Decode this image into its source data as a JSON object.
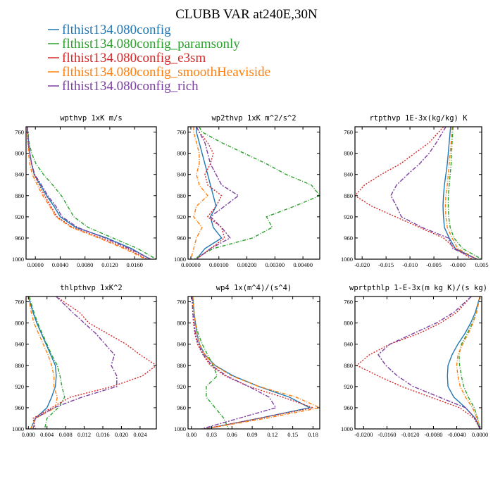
{
  "figure": {
    "title": "CLUBB VAR at240E,30N"
  },
  "legend": [
    {
      "name": "flthist134.080config",
      "color": "#1f77b4"
    },
    {
      "name": "flthist134.080config_paramsonly",
      "color": "#2ca02c"
    },
    {
      "name": "flthist134.080config_e3sm",
      "color": "#d62728"
    },
    {
      "name": "flthist134.080config_smoothHeaviside",
      "color": "#ff7f0e"
    },
    {
      "name": "flthist134.080config_rich",
      "color": "#7b3fa0"
    }
  ],
  "chart_data": [
    {
      "type": "line",
      "title": "wpthvp  1xK m/s",
      "xlim": [
        -0.0015,
        0.0195
      ],
      "ylim": [
        1000,
        750
      ],
      "xticks": [
        0,
        0.004,
        0.008,
        0.012,
        0.016
      ],
      "xticklabels": [
        "0.0000",
        "0.0040",
        "0.0080",
        "0.0120",
        "0.0160"
      ],
      "yticks": [
        760,
        800,
        840,
        880,
        920,
        960,
        1000
      ],
      "y": [
        750,
        780,
        800,
        820,
        840,
        860,
        880,
        900,
        920,
        940,
        960,
        980,
        1000
      ],
      "series": [
        {
          "values": [
            -0.0013,
            -0.0011,
            -0.0009,
            -0.0006,
            -0.0002,
            0.0008,
            0.0018,
            0.003,
            0.004,
            0.0065,
            0.0115,
            0.0155,
            0.0185
          ]
        },
        {
          "values": [
            -0.0013,
            -0.001,
            -0.0006,
            0.0001,
            0.0013,
            0.0028,
            0.0042,
            0.0052,
            0.0062,
            0.0085,
            0.0125,
            0.0165,
            0.0195
          ]
        },
        {
          "values": [
            -0.0013,
            -0.0012,
            -0.0009,
            -0.0006,
            -0.0002,
            0.0006,
            0.0015,
            0.0025,
            0.0035,
            0.006,
            0.0105,
            0.0148,
            0.018
          ]
        },
        {
          "values": [
            -0.0013,
            -0.0012,
            -0.0011,
            -0.0009,
            -0.0005,
            0.0003,
            0.0012,
            0.0023,
            0.0033,
            0.0058,
            0.0102,
            0.0143,
            0.0178
          ]
        },
        {
          "values": [
            -0.0013,
            -0.0011,
            -0.0009,
            -0.0006,
            -0.0001,
            0.001,
            0.002,
            0.0033,
            0.0043,
            0.0068,
            0.0112,
            0.0152,
            0.0186
          ]
        }
      ]
    },
    {
      "type": "line",
      "title": "wp2thvp  1xK m^2/s^2",
      "xlim": [
        -0.0001,
        0.0046
      ],
      "ylim": [
        1000,
        750
      ],
      "xticks": [
        0,
        0.001,
        0.002,
        0.003,
        0.004
      ],
      "xticklabels": [
        "0.00000",
        "0.00100",
        "0.00200",
        "0.00300",
        "0.00400"
      ],
      "yticks": [
        760,
        800,
        840,
        880,
        920,
        960,
        1000
      ],
      "y": [
        750,
        760,
        780,
        800,
        820,
        840,
        860,
        880,
        900,
        920,
        940,
        960,
        980,
        1000
      ],
      "series": [
        {
          "values": [
            0.0002,
            0.0002,
            0.0003,
            0.0004,
            0.0005,
            0.0006,
            0.0007,
            0.0008,
            0.0009,
            0.0007,
            0.0008,
            0.0011,
            0.0005,
            0.0002
          ]
        },
        {
          "values": [
            0.0003,
            0.0004,
            0.0011,
            0.0019,
            0.0027,
            0.0034,
            0.0043,
            0.0046,
            0.0037,
            0.0027,
            0.0029,
            0.0022,
            0.0008,
            0.0001
          ]
        },
        {
          "values": [
            0.0002,
            0.0003,
            0.0006,
            0.0008,
            0.0007,
            0.0005,
            0.0006,
            0.0011,
            0.0009,
            0.0006,
            0.0011,
            0.0012,
            0.0007,
            0.0002
          ]
        },
        {
          "values": [
            0.0001,
            0.0001,
            0.0002,
            0.0003,
            0.0003,
            0.0002,
            0.0003,
            0.0006,
            0.0002,
            0.0001,
            0.0004,
            0.0002,
            0.0001,
            0.0
          ]
        },
        {
          "values": [
            0.0002,
            0.0003,
            0.0005,
            0.0006,
            0.0007,
            0.0009,
            0.0011,
            0.0017,
            0.0012,
            0.0007,
            0.0011,
            0.0014,
            0.0007,
            0.0002
          ]
        }
      ]
    },
    {
      "type": "line",
      "title": "rtpthvp  1E-3x(kg/kg) K",
      "xlim": [
        -0.0215,
        0.005
      ],
      "ylim": [
        1000,
        750
      ],
      "xticks": [
        -0.02,
        -0.015,
        -0.01,
        -0.005,
        0,
        0.005
      ],
      "xticklabels": [
        "-0.020",
        "-0.015",
        "-0.010",
        "-0.005",
        "-0.000",
        "0.005"
      ],
      "yticks": [
        760,
        800,
        840,
        880,
        920,
        960,
        1000
      ],
      "y": [
        750,
        780,
        800,
        820,
        840,
        860,
        880,
        900,
        920,
        940,
        960,
        980,
        1000
      ],
      "series": [
        {
          "values": [
            -0.0015,
            -0.0018,
            -0.002,
            -0.0022,
            -0.0025,
            -0.0028,
            -0.003,
            -0.0031,
            -0.003,
            -0.0028,
            -0.0018,
            -0.0005,
            0.004
          ]
        },
        {
          "values": [
            -0.001,
            -0.0012,
            -0.0013,
            -0.0014,
            -0.0016,
            -0.0018,
            -0.002,
            -0.002,
            -0.0019,
            -0.0016,
            -0.0008,
            0.001,
            0.005
          ]
        },
        {
          "values": [
            -0.003,
            -0.006,
            -0.009,
            -0.012,
            -0.016,
            -0.0195,
            -0.0215,
            -0.018,
            -0.013,
            -0.008,
            -0.003,
            -0.0005,
            0.003
          ]
        },
        {
          "values": [
            -0.0012,
            -0.0014,
            -0.0016,
            -0.0018,
            -0.002,
            -0.0022,
            -0.0025,
            -0.0026,
            -0.0025,
            -0.0022,
            -0.0012,
            0.0,
            0.004
          ]
        },
        {
          "values": [
            -0.0025,
            -0.0045,
            -0.006,
            -0.008,
            -0.0105,
            -0.0128,
            -0.014,
            -0.0128,
            -0.0118,
            -0.0075,
            -0.002,
            -0.001,
            0.004
          ]
        }
      ]
    },
    {
      "type": "line",
      "title": "thlpthvp  1xK^2",
      "xlim": [
        -0.0005,
        0.0275
      ],
      "ylim": [
        1000,
        750
      ],
      "xticks": [
        0,
        0.004,
        0.008,
        0.012,
        0.016,
        0.02,
        0.024
      ],
      "xticklabels": [
        "0.000",
        "0.004",
        "0.008",
        "0.012",
        "0.016",
        "0.020",
        "0.024"
      ],
      "yticks": [
        760,
        800,
        840,
        880,
        920,
        960,
        1000
      ],
      "y": [
        750,
        780,
        800,
        820,
        840,
        860,
        880,
        900,
        920,
        940,
        960,
        980,
        1000
      ],
      "series": [
        {
          "values": [
            0.0,
            0.001,
            0.0018,
            0.0028,
            0.0038,
            0.0048,
            0.0058,
            0.006,
            0.0058,
            0.005,
            0.004,
            0.0015,
            0.0005
          ]
        },
        {
          "values": [
            0.0002,
            0.0012,
            0.002,
            0.003,
            0.004,
            0.005,
            0.0062,
            0.0068,
            0.0072,
            0.0078,
            0.0064,
            0.004,
            0.0035
          ]
        },
        {
          "values": [
            0.006,
            0.011,
            0.013,
            0.017,
            0.021,
            0.024,
            0.0275,
            0.0245,
            0.018,
            0.009,
            0.005,
            0.001,
            0.0015
          ]
        },
        {
          "values": [
            0.0,
            0.0006,
            0.0012,
            0.0022,
            0.0032,
            0.0042,
            0.005,
            0.0055,
            0.0055,
            0.0062,
            0.0058,
            0.0015,
            0.0005
          ]
        },
        {
          "values": [
            0.006,
            0.0095,
            0.012,
            0.0145,
            0.0165,
            0.0185,
            0.0178,
            0.019,
            0.019,
            0.0115,
            0.0055,
            0.0015,
            0.001
          ]
        }
      ]
    },
    {
      "type": "line",
      "title": "wp4  1x(m^4)/(s^4)",
      "xlim": [
        -0.005,
        0.19
      ],
      "ylim": [
        1000,
        750
      ],
      "xticks": [
        0,
        0.03,
        0.06,
        0.09,
        0.12,
        0.15,
        0.18
      ],
      "xticklabels": [
        "0.00",
        "0.03",
        "0.06",
        "0.09",
        "0.12",
        "0.15",
        "0.18"
      ],
      "yticks": [
        760,
        800,
        840,
        880,
        920,
        960,
        1000
      ],
      "y": [
        750,
        780,
        800,
        820,
        840,
        860,
        880,
        900,
        920,
        940,
        960,
        980,
        1000
      ],
      "series": [
        {
          "values": [
            0.002,
            0.004,
            0.006,
            0.008,
            0.012,
            0.02,
            0.035,
            0.062,
            0.1,
            0.145,
            0.175,
            0.1,
            0.02
          ]
        },
        {
          "values": [
            0.002,
            0.004,
            0.006,
            0.01,
            0.016,
            0.024,
            0.032,
            0.038,
            0.022,
            0.022,
            0.035,
            0.048,
            0.055
          ]
        },
        {
          "values": [
            0.001,
            0.002,
            0.003,
            0.005,
            0.009,
            0.017,
            0.028,
            0.05,
            0.085,
            0.135,
            0.18,
            0.1,
            0.02
          ]
        },
        {
          "values": [
            0.002,
            0.004,
            0.006,
            0.008,
            0.012,
            0.02,
            0.034,
            0.06,
            0.1,
            0.155,
            0.19,
            0.11,
            0.02
          ]
        },
        {
          "values": [
            0.001,
            0.002,
            0.004,
            0.006,
            0.01,
            0.018,
            0.03,
            0.052,
            0.085,
            0.115,
            0.125,
            0.07,
            0.015
          ]
        }
      ]
    },
    {
      "type": "line",
      "title": "wprtpthlp  1-E-3x(m kg K)/(s kg)",
      "xlim": [
        -0.0215,
        0.0003
      ],
      "ylim": [
        1000,
        750
      ],
      "xticks": [
        -0.02,
        -0.016,
        -0.012,
        -0.008,
        -0.004,
        0
      ],
      "xticklabels": [
        "-0.0200",
        "-0.0160",
        "-0.0120",
        "-0.0080",
        "-0.0040",
        "0.0000"
      ],
      "yticks": [
        760,
        800,
        840,
        880,
        920,
        960,
        1000
      ],
      "y": [
        750,
        780,
        800,
        820,
        840,
        860,
        880,
        900,
        920,
        940,
        960,
        980,
        1000
      ],
      "series": [
        {
          "values": [
            0.0,
            -0.0008,
            -0.0016,
            -0.0026,
            -0.0038,
            -0.0048,
            -0.0055,
            -0.0056,
            -0.0055,
            -0.0045,
            -0.0025,
            -0.0008,
            0.0
          ]
        },
        {
          "values": [
            0.0,
            -0.0006,
            -0.0013,
            -0.0022,
            -0.0032,
            -0.0036,
            -0.0035,
            -0.0032,
            -0.0028,
            -0.002,
            -0.001,
            -0.0004,
            0.0
          ]
        },
        {
          "values": [
            -0.0015,
            -0.004,
            -0.0068,
            -0.0105,
            -0.0155,
            -0.019,
            -0.0212,
            -0.0175,
            -0.0135,
            -0.0085,
            -0.0035,
            -0.001,
            0.0
          ]
        },
        {
          "values": [
            0.0,
            -0.0006,
            -0.0012,
            -0.002,
            -0.003,
            -0.0038,
            -0.004,
            -0.0038,
            -0.0034,
            -0.0025,
            -0.0013,
            -0.0005,
            0.0
          ]
        },
        {
          "values": [
            -0.0015,
            -0.0045,
            -0.0075,
            -0.0115,
            -0.0155,
            -0.0175,
            -0.0162,
            -0.0142,
            -0.0115,
            -0.007,
            -0.0025,
            -0.0008,
            0.0
          ]
        }
      ]
    }
  ]
}
